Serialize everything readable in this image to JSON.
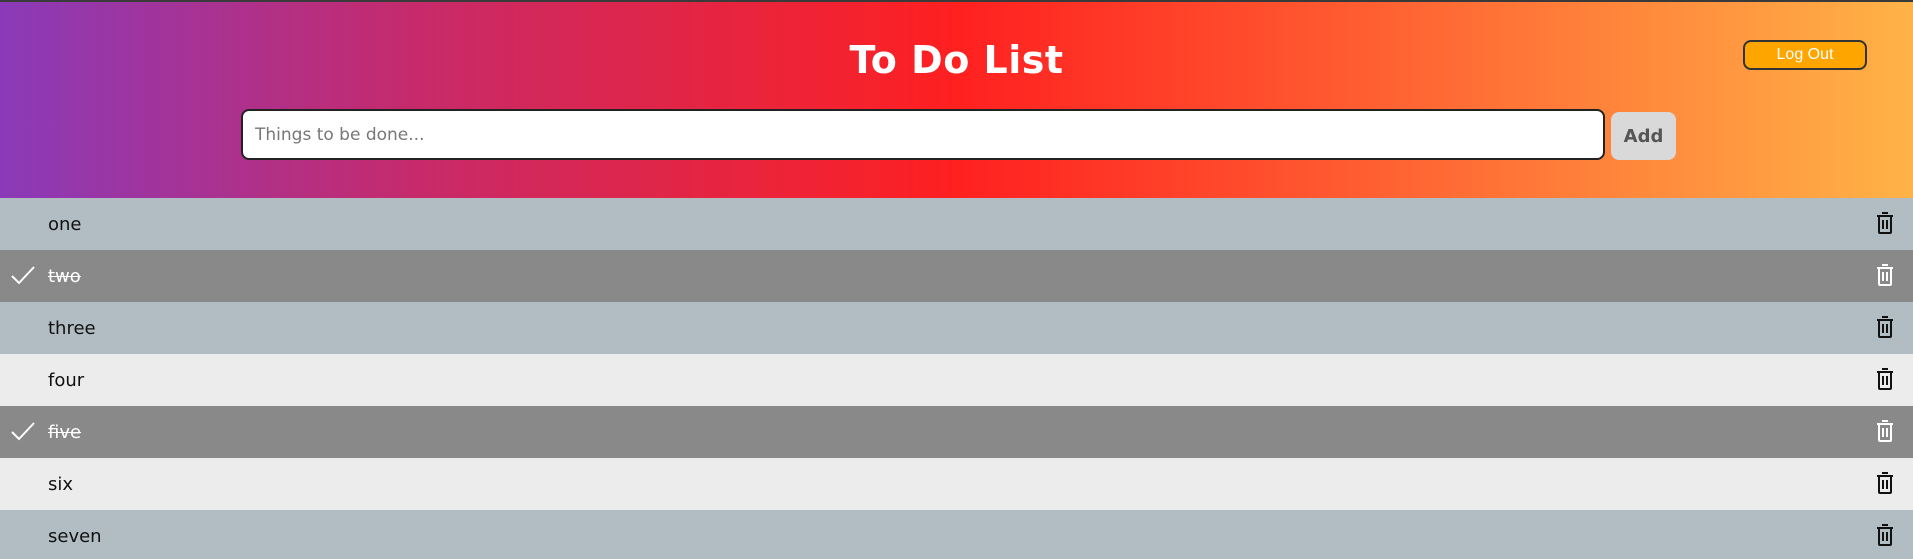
{
  "header": {
    "title": "To Do List",
    "logout_label": "Log Out",
    "input_placeholder": "Things to be done...",
    "input_value": "",
    "add_label": "Add"
  },
  "todos": [
    {
      "text": "one",
      "done": false,
      "shade": "blue"
    },
    {
      "text": "two",
      "done": true,
      "shade": "dark"
    },
    {
      "text": "three",
      "done": false,
      "shade": "blue"
    },
    {
      "text": "four",
      "done": false,
      "shade": "light"
    },
    {
      "text": "five",
      "done": true,
      "shade": "dark"
    },
    {
      "text": "six",
      "done": false,
      "shade": "light"
    },
    {
      "text": "seven",
      "done": false,
      "shade": "blue"
    }
  ],
  "icons": {
    "check": "check-icon",
    "delete": "trash-icon"
  },
  "colors": {
    "row_blue": "#b1bcc3",
    "row_light": "#ececec",
    "row_done": "#898989",
    "logout_button": "#ffa500",
    "add_button": "#d9d9d9"
  }
}
